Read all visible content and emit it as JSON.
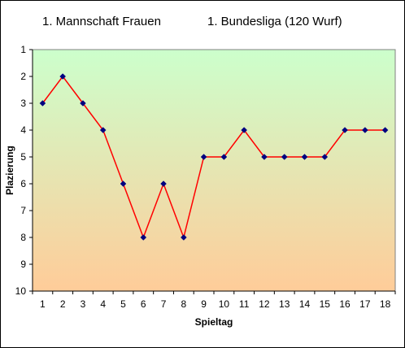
{
  "header": {
    "team": "1. Mannschaft Frauen",
    "league": "1. Bundesliga (120 Wurf)"
  },
  "colors": {
    "line": "#ff0000",
    "marker": "#000080",
    "bg_top": "#ccffcc",
    "bg_bottom": "#ffcc99"
  },
  "chart_data": {
    "type": "line",
    "title": "",
    "xlabel": "Spieltag",
    "ylabel": "Plazierung",
    "x": [
      1,
      2,
      3,
      4,
      5,
      6,
      7,
      8,
      9,
      10,
      11,
      12,
      13,
      14,
      15,
      16,
      17,
      18
    ],
    "series": [
      {
        "values": [
          3,
          2,
          3,
          4,
          6,
          8,
          6,
          8,
          5,
          5,
          4,
          5,
          5,
          5,
          5,
          4,
          4,
          4
        ]
      }
    ],
    "ylim": [
      1,
      10
    ],
    "y_reversed": true,
    "yticks": [
      1,
      2,
      3,
      4,
      5,
      6,
      7,
      8,
      9,
      10
    ],
    "grid": false,
    "legend": "none"
  }
}
